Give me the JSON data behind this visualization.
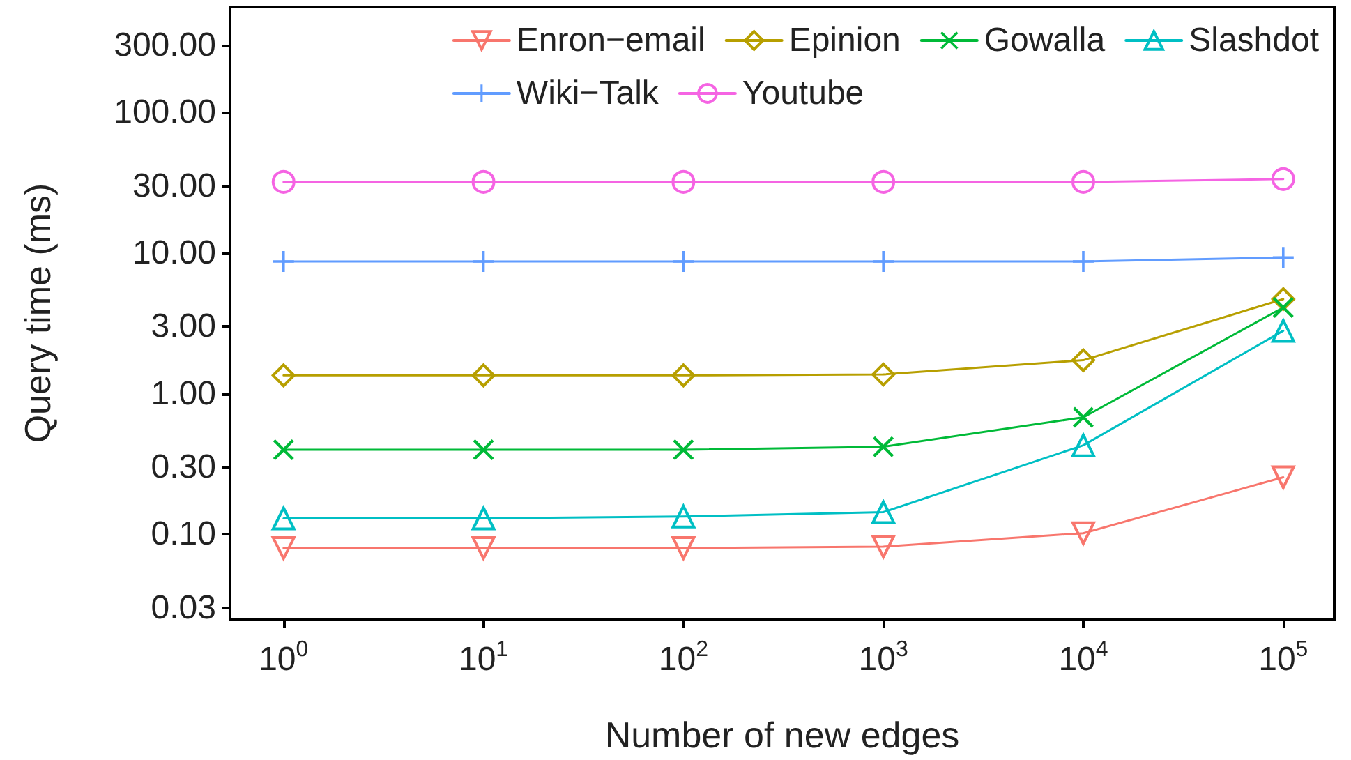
{
  "chart_data": {
    "type": "line",
    "xlabel": "Number of new edges",
    "ylabel": "Query time (ms)",
    "x": [
      1,
      10,
      100,
      1000,
      10000,
      100000
    ],
    "xlim": [
      0.54,
      180000
    ],
    "xticks": [
      {
        "value": 1,
        "label": "10$^{0}$"
      },
      {
        "value": 10,
        "label": "10$^{1}$"
      },
      {
        "value": 100,
        "label": "10$^{2}$"
      },
      {
        "value": 1000,
        "label": "10$^{3}$"
      },
      {
        "value": 10000,
        "label": "10$^{4}$"
      },
      {
        "value": 100000,
        "label": "10$^{5}$"
      }
    ],
    "ylim": [
      0.025,
      560
    ],
    "yticks": [
      {
        "value": 0.03,
        "label": "0.03"
      },
      {
        "value": 0.1,
        "label": "0.10"
      },
      {
        "value": 0.3,
        "label": "0.30"
      },
      {
        "value": 1,
        "label": "1.00"
      },
      {
        "value": 3,
        "label": "3.00"
      },
      {
        "value": 10,
        "label": "10.00"
      },
      {
        "value": 30,
        "label": "30.00"
      },
      {
        "value": 100,
        "label": "100.00"
      },
      {
        "value": 300,
        "label": "300.00"
      }
    ],
    "log": "xy",
    "grid": false,
    "legend": "top right",
    "line_style": "solid",
    "series": [
      {
        "name": "Enron−email",
        "color": "#f8766d",
        "marker": "triangle-down",
        "values": [
          0.08,
          0.08,
          0.08,
          0.082,
          0.102,
          0.255
        ]
      },
      {
        "name": "Epinion",
        "color": "#b79f00",
        "marker": "diamond",
        "values": [
          1.35,
          1.35,
          1.35,
          1.37,
          1.73,
          4.7
        ]
      },
      {
        "name": "Gowalla",
        "color": "#00ba38",
        "marker": "cross",
        "values": [
          0.4,
          0.4,
          0.4,
          0.42,
          0.68,
          4.1
        ]
      },
      {
        "name": "Slashdot",
        "color": "#00bfc4",
        "marker": "triangle",
        "values": [
          0.13,
          0.13,
          0.134,
          0.144,
          0.43,
          2.8
        ]
      },
      {
        "name": "Wiki−Talk",
        "color": "#619cff",
        "marker": "plus",
        "values": [
          8.7,
          8.7,
          8.7,
          8.7,
          8.7,
          9.3
        ]
      },
      {
        "name": "Youtube",
        "color": "#f564e3",
        "marker": "circle",
        "values": [
          32,
          32,
          32,
          32,
          32,
          33.5
        ]
      }
    ]
  }
}
